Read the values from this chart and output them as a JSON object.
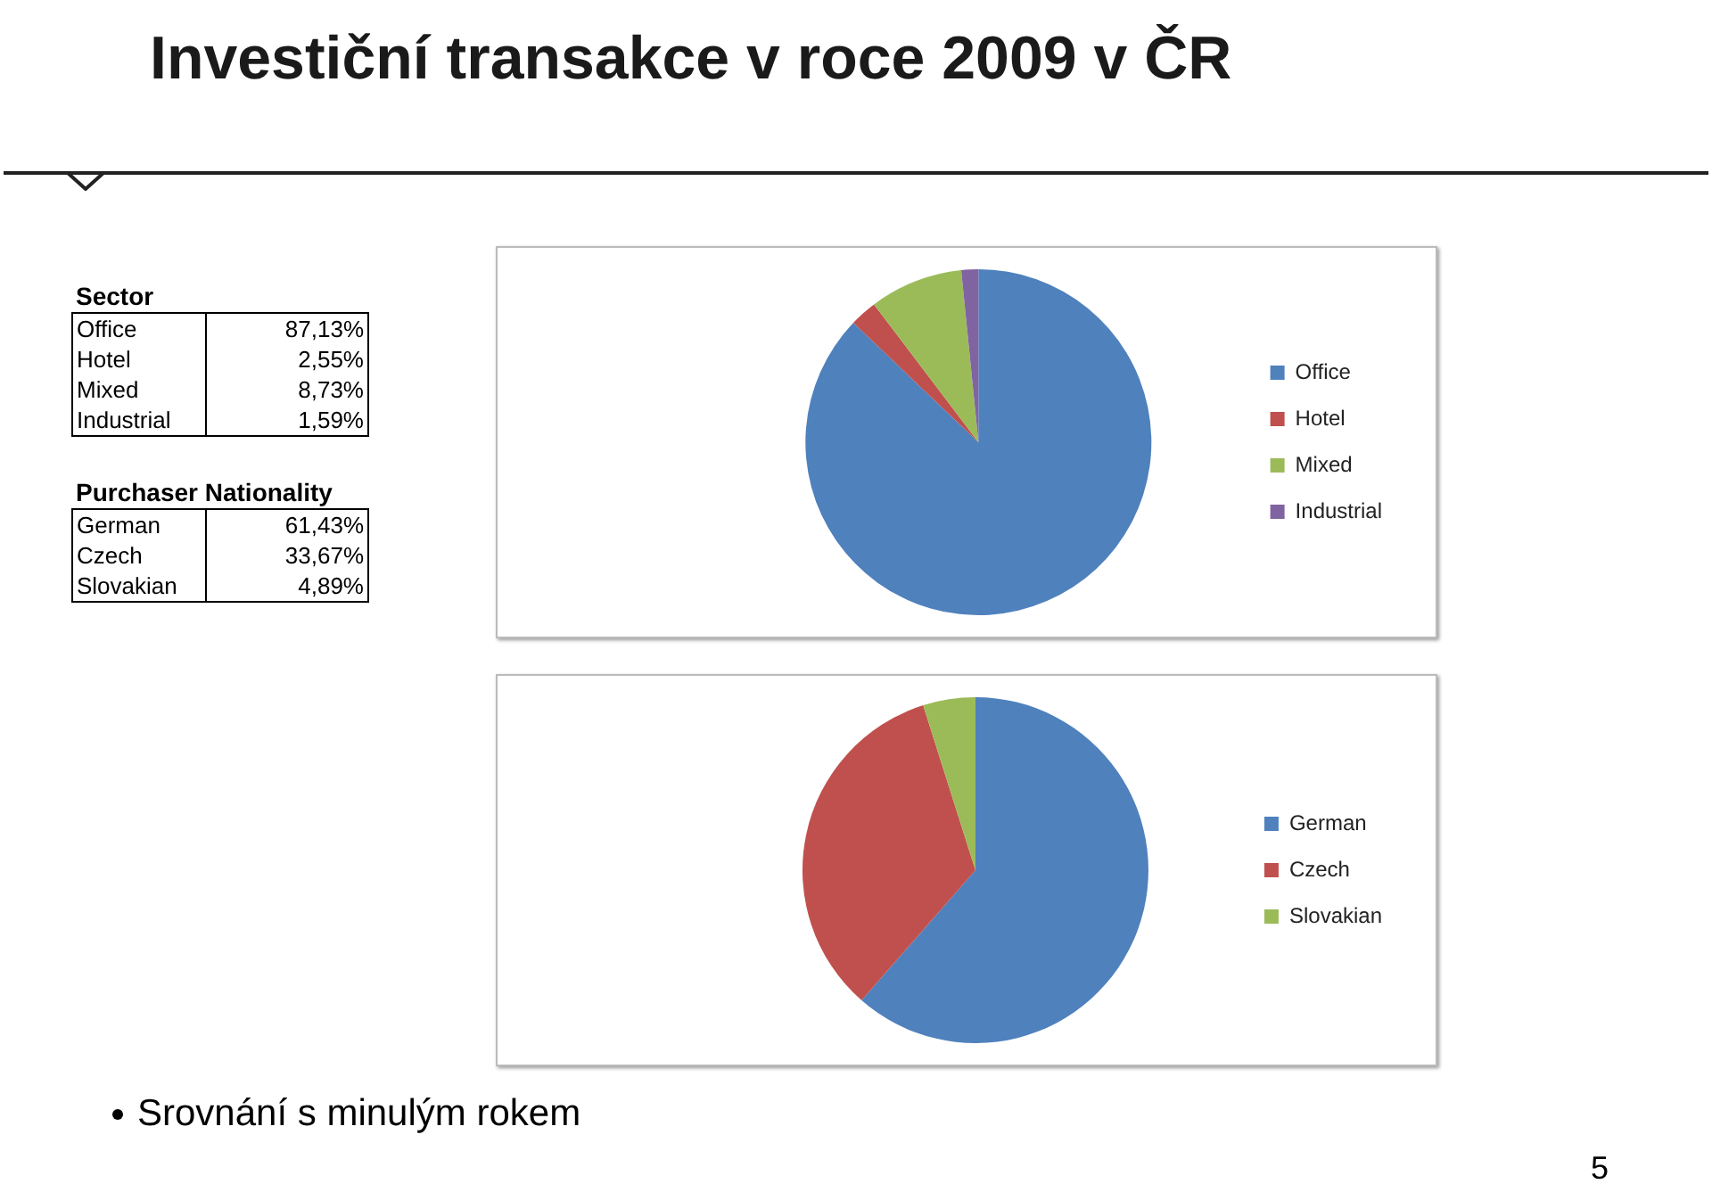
{
  "chart_data": [
    {
      "type": "other",
      "title": "Investiční transakce v roce 2009 v ČR",
      "subtitle": "Sector",
      "categories": [
        "Office",
        "Hotel",
        "Mixed",
        "Industrial"
      ],
      "value_labels": [
        "87,13%",
        "2,55%",
        "8,73%",
        "1,59%"
      ]
    },
    {
      "type": "other",
      "subtitle": "Purchaser Nationality",
      "categories": [
        "German",
        "Czech",
        "Slovakian"
      ],
      "value_labels": [
        "61,43%",
        "33,67%",
        "4,89%"
      ]
    },
    {
      "type": "pie",
      "categories": [
        "Office",
        "Hotel",
        "Mixed",
        "Industrial"
      ],
      "values": [
        87.13,
        2.55,
        8.73,
        1.59
      ],
      "colors": [
        "#4f81bd",
        "#c0504d",
        "#9bbb59",
        "#8064a2"
      ],
      "legend": "right"
    },
    {
      "type": "pie",
      "categories": [
        "German",
        "Czech",
        "Slovakian"
      ],
      "values": [
        61.43,
        33.67,
        4.89
      ],
      "colors": [
        "#4f81bd",
        "#c0504d",
        "#9bbb59"
      ],
      "legend": "right",
      "annotations": [
        "Srovnání s minulým rokem",
        "5"
      ]
    }
  ]
}
